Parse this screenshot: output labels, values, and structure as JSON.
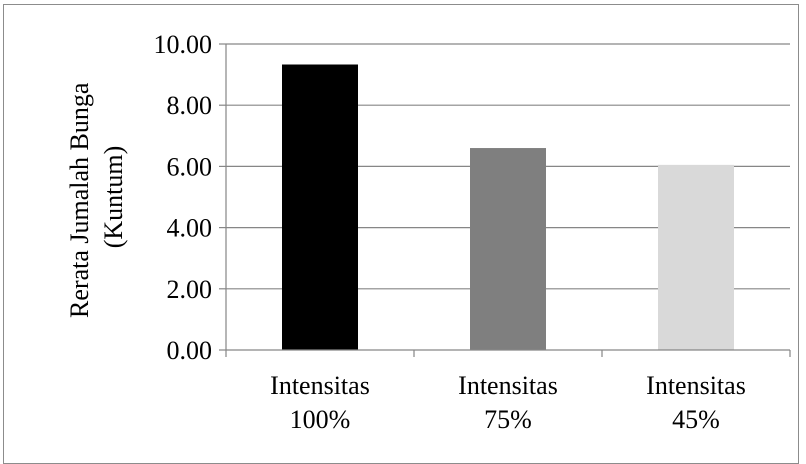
{
  "chart_data": {
    "type": "bar",
    "title": "",
    "xlabel": "",
    "ylabel_lines": [
      "Rerata Jumalah Bunga",
      "(Kuntum)"
    ],
    "categories": [
      [
        "Intensitas",
        "100%"
      ],
      [
        "Intensitas",
        "75%"
      ],
      [
        "Intensitas",
        "45%"
      ]
    ],
    "values": [
      9.33,
      6.6,
      6.05
    ],
    "bar_colors": [
      "#000000",
      "#7f7f7f",
      "#d9d9d9"
    ],
    "ylim": [
      0,
      10
    ],
    "yticks": [
      "0.00",
      "2.00",
      "4.00",
      "6.00",
      "8.00",
      "10.00"
    ],
    "grid": true,
    "legend": "none"
  }
}
